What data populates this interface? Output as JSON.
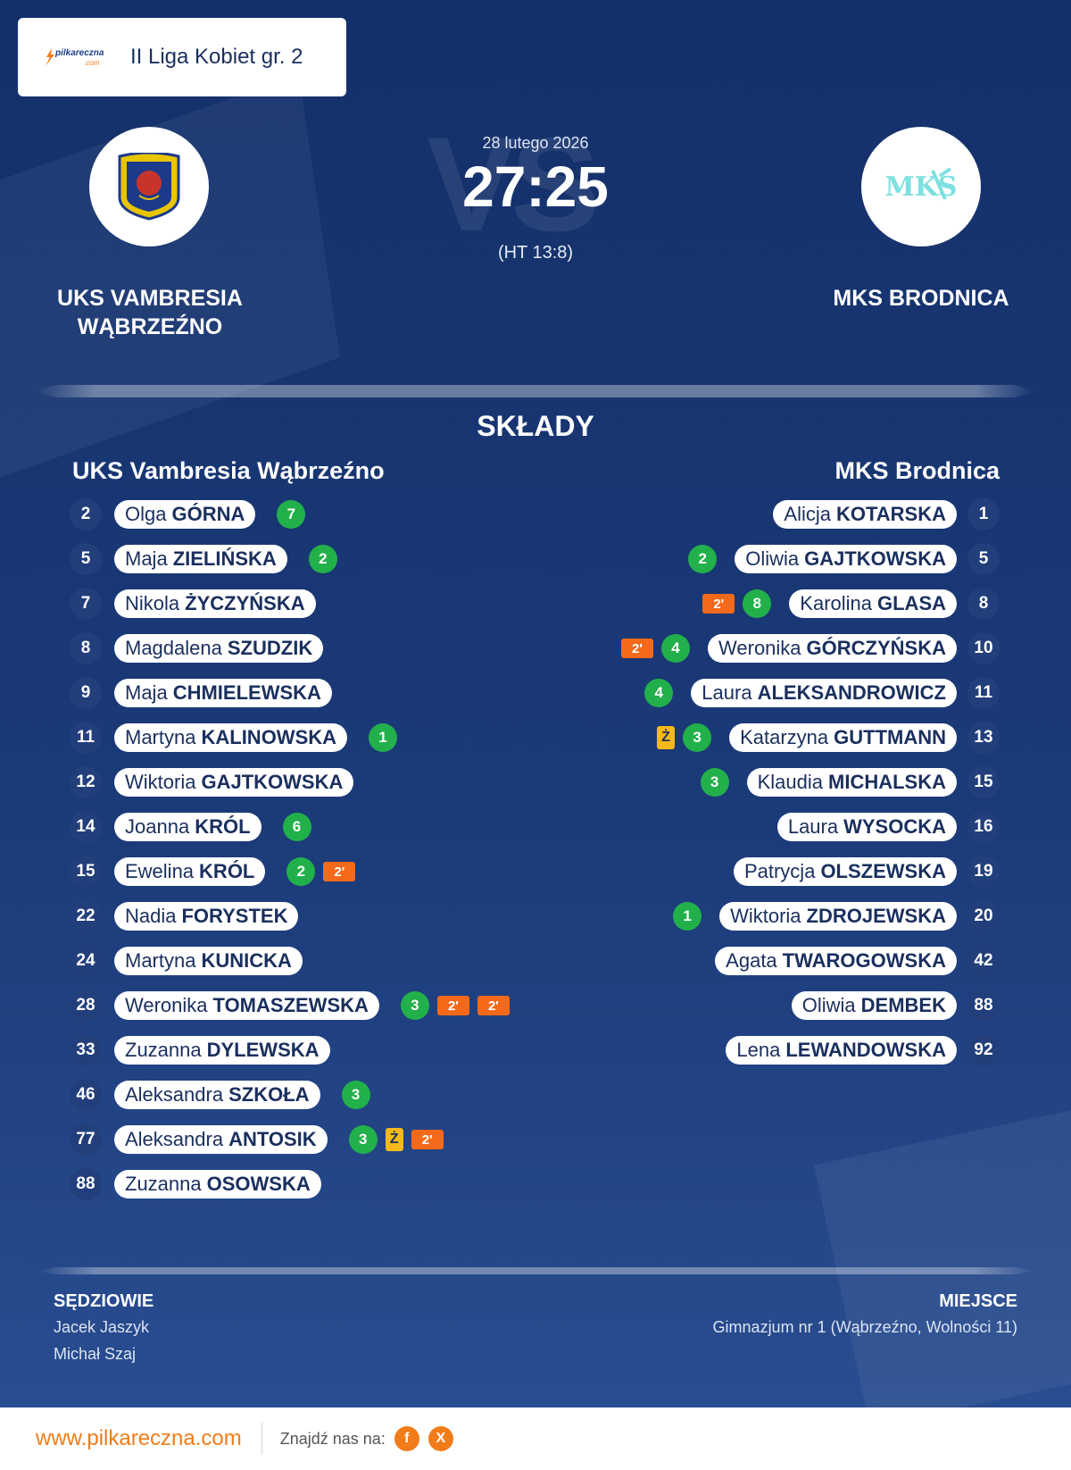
{
  "league": {
    "logo_text": "pilkareczna",
    "logo_sub": ".com",
    "name": "II Liga Kobiet gr. 2"
  },
  "match": {
    "vs": "VS",
    "date": "28 lutego 2026",
    "score": "27:25",
    "halftime": "(HT 13:8)"
  },
  "home": {
    "name_line1": "UKS VAMBRESIA",
    "name_line2": "WĄBRZEŹNO",
    "lineup_title": "UKS Vambresia Wąbrzeźno",
    "players": [
      {
        "num": "2",
        "first": "Olga",
        "last": "GÓRNA",
        "events": [
          "7"
        ]
      },
      {
        "num": "5",
        "first": "Maja",
        "last": "ZIELIŃSKA",
        "events": [
          "2"
        ]
      },
      {
        "num": "7",
        "first": "Nikola",
        "last": "ŻYCZYŃSKA",
        "events": []
      },
      {
        "num": "8",
        "first": "Magdalena",
        "last": "SZUDZIK",
        "events": []
      },
      {
        "num": "9",
        "first": "Maja",
        "last": "CHMIELEWSKA",
        "events": []
      },
      {
        "num": "11",
        "first": "Martyna",
        "last": "KALINOWSKA",
        "events": [
          "1"
        ]
      },
      {
        "num": "12",
        "first": "Wiktoria",
        "last": "GAJTKOWSKA",
        "events": []
      },
      {
        "num": "14",
        "first": "Joanna",
        "last": "KRÓL",
        "events": [
          "6"
        ]
      },
      {
        "num": "15",
        "first": "Ewelina",
        "last": "KRÓL",
        "events": [
          "2",
          "2'"
        ]
      },
      {
        "num": "22",
        "first": "Nadia",
        "last": "FORYSTEK",
        "events": []
      },
      {
        "num": "24",
        "first": "Martyna",
        "last": "KUNICKA",
        "events": []
      },
      {
        "num": "28",
        "first": "Weronika",
        "last": "TOMASZEWSKA",
        "events": [
          "3",
          "2'",
          "2'"
        ]
      },
      {
        "num": "33",
        "first": "Zuzanna",
        "last": "DYLEWSKA",
        "events": []
      },
      {
        "num": "46",
        "first": "Aleksandra",
        "last": "SZKOŁA",
        "events": [
          "3"
        ]
      },
      {
        "num": "77",
        "first": "Aleksandra",
        "last": "ANTOSIK",
        "events": [
          "3",
          "Ż",
          "2'"
        ]
      },
      {
        "num": "88",
        "first": "Zuzanna",
        "last": "OSOWSKA",
        "events": []
      }
    ]
  },
  "away": {
    "crest_text": "MKS",
    "name_line1": "MKS BRODNICA",
    "lineup_title": "MKS Brodnica",
    "players": [
      {
        "num": "1",
        "first": "Alicja",
        "last": "KOTARSKA",
        "events": []
      },
      {
        "num": "5",
        "first": "Oliwia",
        "last": "GAJTKOWSKA",
        "events": [
          "2"
        ]
      },
      {
        "num": "8",
        "first": "Karolina",
        "last": "GLASA",
        "events": [
          "8",
          "2'"
        ]
      },
      {
        "num": "10",
        "first": "Weronika",
        "last": "GÓRCZYŃSKA",
        "events": [
          "4",
          "2'"
        ]
      },
      {
        "num": "11",
        "first": "Laura",
        "last": "ALEKSANDROWICZ",
        "events": [
          "4"
        ]
      },
      {
        "num": "13",
        "first": "Katarzyna",
        "last": "GUTTMANN",
        "events": [
          "3",
          "Ż"
        ]
      },
      {
        "num": "15",
        "first": "Klaudia",
        "last": "MICHALSKA",
        "events": [
          "3"
        ]
      },
      {
        "num": "16",
        "first": "Laura",
        "last": "WYSOCKA",
        "events": []
      },
      {
        "num": "19",
        "first": "Patrycja",
        "last": "OLSZEWSKA",
        "events": []
      },
      {
        "num": "20",
        "first": "Wiktoria",
        "last": "ZDROJEWSKA",
        "events": [
          "1"
        ]
      },
      {
        "num": "42",
        "first": "Agata",
        "last": "TWAROGOWSKA",
        "events": []
      },
      {
        "num": "88",
        "first": "Oliwia",
        "last": "DEMBEK",
        "events": []
      },
      {
        "num": "92",
        "first": "Lena",
        "last": "LEWANDOWSKA",
        "events": []
      }
    ]
  },
  "section_title": "SKŁADY",
  "referees": {
    "title": "SĘDZIOWIE",
    "names": [
      "Jacek Jaszyk",
      "Michał Szaj"
    ]
  },
  "venue": {
    "title": "MIEJSCE",
    "name": "Gimnazjum nr 1 (Wąbrzeźno, Wolności 11)"
  },
  "footer": {
    "site": "www.pilkareczna.com",
    "find_us": "Znajdź nas na:",
    "social": [
      {
        "label": "f",
        "icon": "facebook-icon"
      },
      {
        "label": "X",
        "icon": "x-icon"
      }
    ]
  },
  "colors": {
    "goal": "#22b04b",
    "two_min": "#f56a1a",
    "yellow": "#f5b91a",
    "brand_orange": "#f07c1a"
  }
}
